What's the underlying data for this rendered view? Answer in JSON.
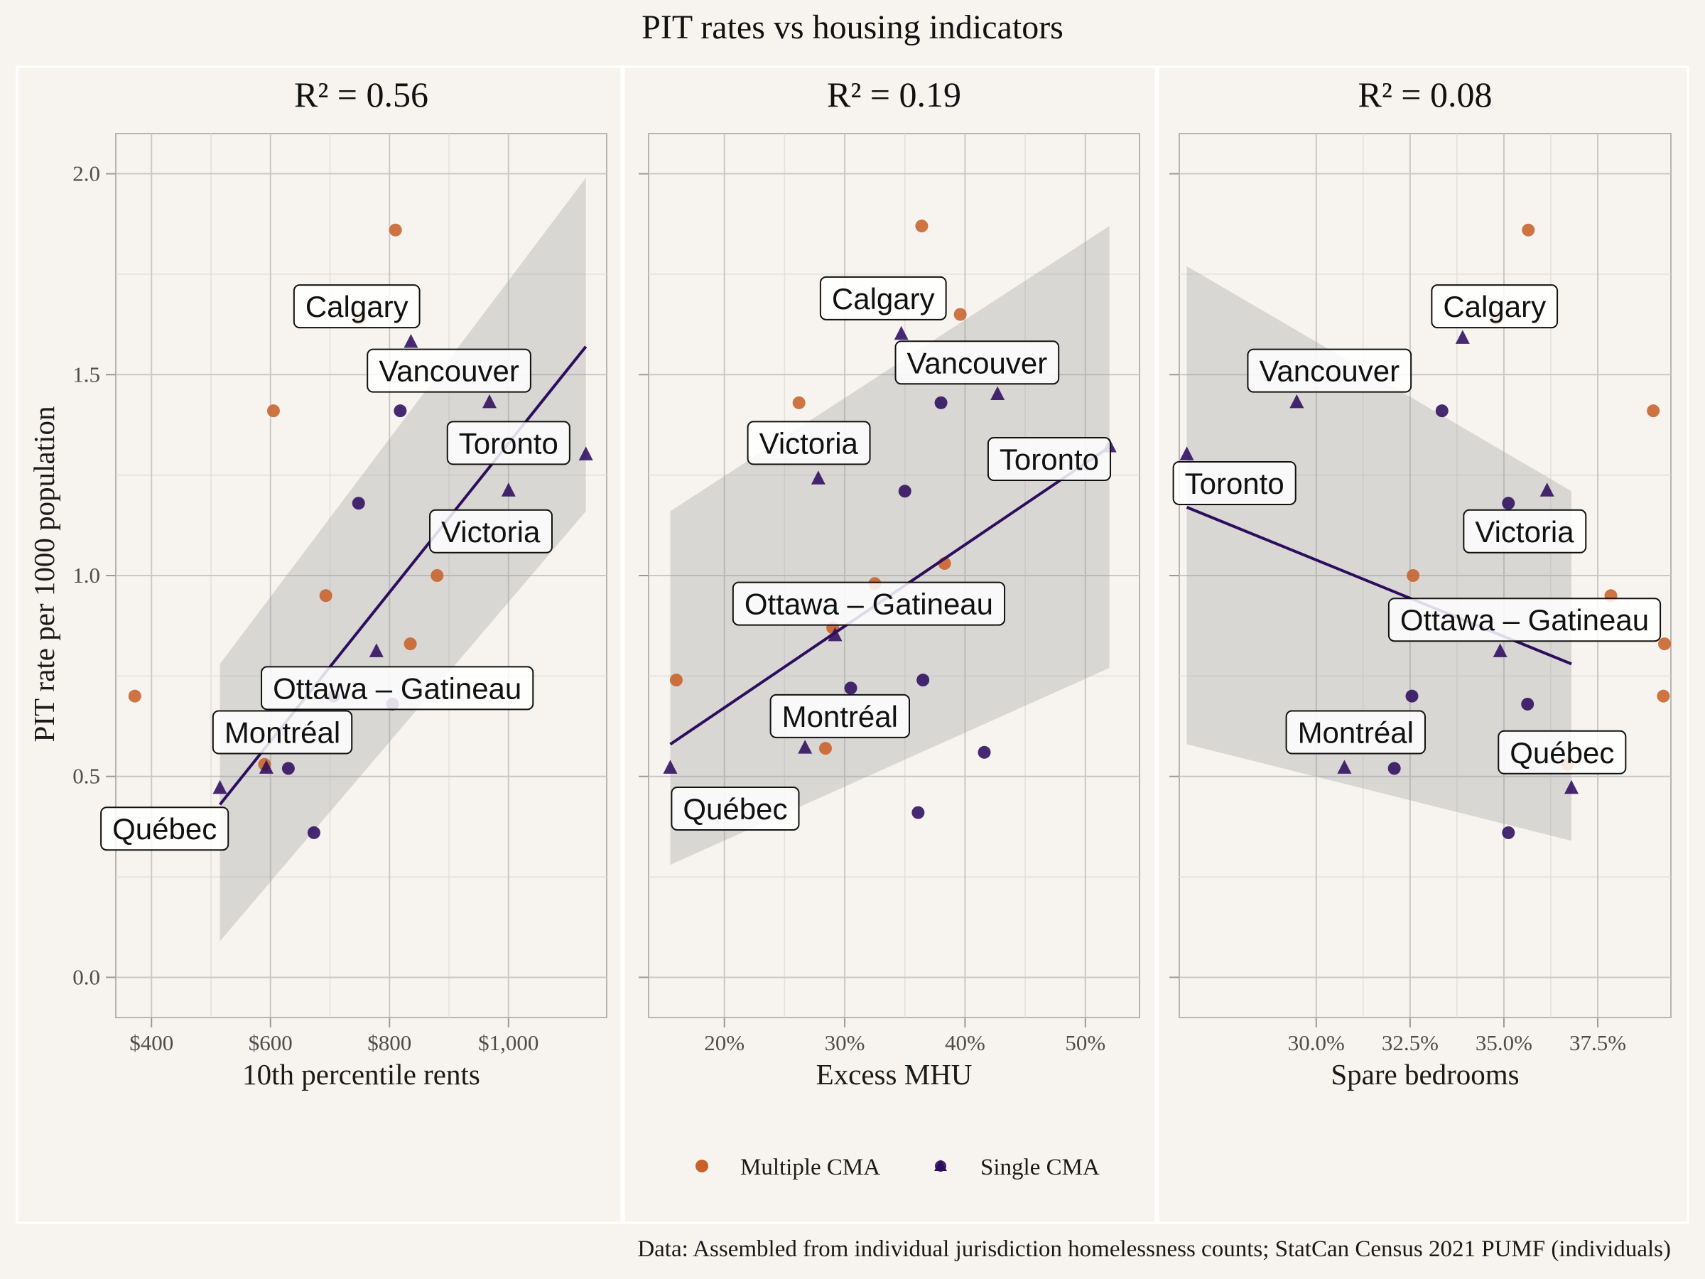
{
  "title": "PIT rates vs housing indicators",
  "ylabel": "PIT rate per 1000 population",
  "caption": "Data: Assembled from individual jurisdiction homelessness counts; StatCan Census 2021 PUMF (individuals)",
  "colors": {
    "multiple": "#c8612a",
    "single": "#2d0d5e",
    "ribbon": "#9a9a9a",
    "panel_bg": "#f7f4ef",
    "grid": "#c8c8c8",
    "fit": "#2d0d5e"
  },
  "legend": {
    "items": [
      {
        "key": "multiple",
        "label": "Multiple CMA",
        "icon": "circle-icon"
      },
      {
        "key": "single",
        "label": "Single CMA",
        "icon": "circle-triangle-icon"
      }
    ]
  },
  "chart_data": [
    {
      "type": "scatter",
      "title": "R² = 0.56",
      "xlabel": "10th percentile rents",
      "ylabel": "PIT rate per 1000 population",
      "xlim": [
        340,
        1165
      ],
      "ylim": [
        -0.1,
        2.1
      ],
      "xticks": [
        400,
        600,
        800,
        1000
      ],
      "xtick_labels": [
        "$400",
        "$600",
        "$800",
        "$1,000"
      ],
      "yticks": [
        0,
        0.5,
        1,
        1.5,
        2
      ],
      "ytick_labels": [
        "0.0",
        "0.5",
        "1.0",
        "1.5",
        "2.0"
      ],
      "grid": true,
      "fit": {
        "x": [
          515,
          1130
        ],
        "y": [
          0.43,
          1.57
        ],
        "band_lo": [
          0.09,
          1.16
        ],
        "band_hi": [
          0.78,
          1.99
        ]
      },
      "points": [
        {
          "x": 372,
          "y": 0.7,
          "group": "multiple",
          "shape": "circle"
        },
        {
          "x": 605,
          "y": 1.41,
          "group": "multiple",
          "shape": "circle"
        },
        {
          "x": 810,
          "y": 1.86,
          "group": "multiple",
          "shape": "circle"
        },
        {
          "x": 750,
          "y": 1.64,
          "group": "multiple",
          "shape": "circle"
        },
        {
          "x": 880,
          "y": 1.0,
          "group": "multiple",
          "shape": "circle"
        },
        {
          "x": 693,
          "y": 0.95,
          "group": "multiple",
          "shape": "circle"
        },
        {
          "x": 835,
          "y": 0.83,
          "group": "multiple",
          "shape": "circle"
        },
        {
          "x": 590,
          "y": 0.53,
          "group": "multiple",
          "shape": "circle"
        },
        {
          "x": 836,
          "y": 1.58,
          "group": "single",
          "shape": "triangle"
        },
        {
          "x": 968,
          "y": 1.43,
          "group": "single",
          "shape": "triangle"
        },
        {
          "x": 1130,
          "y": 1.3,
          "group": "single",
          "shape": "triangle"
        },
        {
          "x": 1000,
          "y": 1.21,
          "group": "single",
          "shape": "triangle"
        },
        {
          "x": 778,
          "y": 0.81,
          "group": "single",
          "shape": "triangle"
        },
        {
          "x": 515,
          "y": 0.47,
          "group": "single",
          "shape": "triangle"
        },
        {
          "x": 593,
          "y": 0.52,
          "group": "single",
          "shape": "triangle"
        },
        {
          "x": 818,
          "y": 1.41,
          "group": "single",
          "shape": "circle"
        },
        {
          "x": 748,
          "y": 1.18,
          "group": "single",
          "shape": "circle"
        },
        {
          "x": 706,
          "y": 0.7,
          "group": "single",
          "shape": "circle"
        },
        {
          "x": 805,
          "y": 0.68,
          "group": "single",
          "shape": "circle"
        },
        {
          "x": 630,
          "y": 0.52,
          "group": "single",
          "shape": "circle"
        },
        {
          "x": 673,
          "y": 0.36,
          "group": "single",
          "shape": "circle"
        }
      ],
      "labels": [
        {
          "text": "Calgary",
          "x": 745,
          "y": 1.67
        },
        {
          "text": "Vancouver",
          "x": 900,
          "y": 1.51
        },
        {
          "text": "Toronto",
          "x": 1000,
          "y": 1.33
        },
        {
          "text": "Victoria",
          "x": 970,
          "y": 1.11
        },
        {
          "text": "Ottawa – Gatineau",
          "x": 813,
          "y": 0.72
        },
        {
          "text": "Montréal",
          "x": 620,
          "y": 0.61
        },
        {
          "text": "Québec",
          "x": 422,
          "y": 0.37
        }
      ]
    },
    {
      "type": "scatter",
      "title": "R² = 0.19",
      "xlabel": "Excess MHU",
      "ylabel": "",
      "xlim": [
        0.137,
        0.545
      ],
      "ylim": [
        -0.1,
        2.1
      ],
      "xticks": [
        0.2,
        0.3,
        0.4,
        0.5
      ],
      "xtick_labels": [
        "20%",
        "30%",
        "40%",
        "50%"
      ],
      "yticks": [
        0,
        0.5,
        1,
        1.5,
        2
      ],
      "ytick_labels": [],
      "grid": true,
      "fit": {
        "x": [
          0.155,
          0.52
        ],
        "y": [
          0.58,
          1.32
        ],
        "band_lo": [
          0.28,
          0.77
        ],
        "band_hi": [
          1.16,
          1.87
        ]
      },
      "points": [
        {
          "x": 0.16,
          "y": 0.74,
          "group": "multiple",
          "shape": "circle"
        },
        {
          "x": 0.262,
          "y": 1.43,
          "group": "multiple",
          "shape": "circle"
        },
        {
          "x": 0.364,
          "y": 1.87,
          "group": "multiple",
          "shape": "circle"
        },
        {
          "x": 0.396,
          "y": 1.65,
          "group": "multiple",
          "shape": "circle"
        },
        {
          "x": 0.383,
          "y": 1.03,
          "group": "multiple",
          "shape": "circle"
        },
        {
          "x": 0.325,
          "y": 0.98,
          "group": "multiple",
          "shape": "circle"
        },
        {
          "x": 0.29,
          "y": 0.87,
          "group": "multiple",
          "shape": "circle"
        },
        {
          "x": 0.284,
          "y": 0.57,
          "group": "multiple",
          "shape": "circle"
        },
        {
          "x": 0.347,
          "y": 1.6,
          "group": "single",
          "shape": "triangle"
        },
        {
          "x": 0.427,
          "y": 1.45,
          "group": "single",
          "shape": "triangle"
        },
        {
          "x": 0.52,
          "y": 1.32,
          "group": "single",
          "shape": "triangle"
        },
        {
          "x": 0.278,
          "y": 1.24,
          "group": "single",
          "shape": "triangle"
        },
        {
          "x": 0.292,
          "y": 0.85,
          "group": "single",
          "shape": "triangle"
        },
        {
          "x": 0.155,
          "y": 0.52,
          "group": "single",
          "shape": "triangle"
        },
        {
          "x": 0.267,
          "y": 0.57,
          "group": "single",
          "shape": "triangle"
        },
        {
          "x": 0.38,
          "y": 1.43,
          "group": "single",
          "shape": "circle"
        },
        {
          "x": 0.35,
          "y": 1.21,
          "group": "single",
          "shape": "circle"
        },
        {
          "x": 0.305,
          "y": 0.72,
          "group": "single",
          "shape": "circle"
        },
        {
          "x": 0.365,
          "y": 0.74,
          "group": "single",
          "shape": "circle"
        },
        {
          "x": 0.416,
          "y": 0.56,
          "group": "single",
          "shape": "circle"
        },
        {
          "x": 0.361,
          "y": 0.41,
          "group": "single",
          "shape": "circle"
        }
      ],
      "labels": [
        {
          "text": "Calgary",
          "x": 0.332,
          "y": 1.69
        },
        {
          "text": "Vancouver",
          "x": 0.41,
          "y": 1.53
        },
        {
          "text": "Toronto",
          "x": 0.47,
          "y": 1.29
        },
        {
          "text": "Victoria",
          "x": 0.27,
          "y": 1.33
        },
        {
          "text": "Ottawa – Gatineau",
          "x": 0.32,
          "y": 0.93
        },
        {
          "text": "Montréal",
          "x": 0.296,
          "y": 0.65
        },
        {
          "text": "Québec",
          "x": 0.209,
          "y": 0.42
        }
      ]
    },
    {
      "type": "scatter",
      "title": "R² = 0.08",
      "xlabel": "Spare bedrooms",
      "ylabel": "",
      "xlim": [
        0.2635,
        0.3945
      ],
      "ylim": [
        -0.1,
        2.1
      ],
      "xticks": [
        0.3,
        0.325,
        0.35,
        0.375
      ],
      "xtick_labels": [
        "30.0%",
        "32.5%",
        "35.0%",
        "37.5%"
      ],
      "yticks": [
        0,
        0.5,
        1,
        1.5,
        2
      ],
      "ytick_labels": [],
      "grid": true,
      "fit": {
        "x": [
          0.2655,
          0.368
        ],
        "y": [
          1.17,
          0.78
        ],
        "band_lo": [
          0.58,
          0.34
        ],
        "band_hi": [
          1.77,
          1.21
        ]
      },
      "points": [
        {
          "x": 0.3565,
          "y": 1.86,
          "group": "multiple",
          "shape": "circle"
        },
        {
          "x": 0.348,
          "y": 1.64,
          "group": "multiple",
          "shape": "circle"
        },
        {
          "x": 0.3898,
          "y": 1.41,
          "group": "multiple",
          "shape": "circle"
        },
        {
          "x": 0.3258,
          "y": 1.0,
          "group": "multiple",
          "shape": "circle"
        },
        {
          "x": 0.3785,
          "y": 0.95,
          "group": "multiple",
          "shape": "circle"
        },
        {
          "x": 0.3928,
          "y": 0.83,
          "group": "multiple",
          "shape": "circle"
        },
        {
          "x": 0.3925,
          "y": 0.7,
          "group": "multiple",
          "shape": "circle"
        },
        {
          "x": 0.367,
          "y": 0.53,
          "group": "multiple",
          "shape": "circle"
        },
        {
          "x": 0.339,
          "y": 1.59,
          "group": "single",
          "shape": "triangle"
        },
        {
          "x": 0.2948,
          "y": 1.43,
          "group": "single",
          "shape": "triangle"
        },
        {
          "x": 0.2655,
          "y": 1.3,
          "group": "single",
          "shape": "triangle"
        },
        {
          "x": 0.3615,
          "y": 1.21,
          "group": "single",
          "shape": "triangle"
        },
        {
          "x": 0.349,
          "y": 0.81,
          "group": "single",
          "shape": "triangle"
        },
        {
          "x": 0.368,
          "y": 0.47,
          "group": "single",
          "shape": "triangle"
        },
        {
          "x": 0.3075,
          "y": 0.52,
          "group": "single",
          "shape": "triangle"
        },
        {
          "x": 0.3335,
          "y": 1.41,
          "group": "single",
          "shape": "circle"
        },
        {
          "x": 0.3512,
          "y": 1.18,
          "group": "single",
          "shape": "circle"
        },
        {
          "x": 0.3255,
          "y": 0.7,
          "group": "single",
          "shape": "circle"
        },
        {
          "x": 0.3563,
          "y": 0.68,
          "group": "single",
          "shape": "circle"
        },
        {
          "x": 0.3208,
          "y": 0.52,
          "group": "single",
          "shape": "circle"
        },
        {
          "x": 0.3512,
          "y": 0.36,
          "group": "single",
          "shape": "circle"
        }
      ],
      "labels": [
        {
          "text": "Calgary",
          "x": 0.3475,
          "y": 1.67
        },
        {
          "text": "Vancouver",
          "x": 0.3035,
          "y": 1.51
        },
        {
          "text": "Toronto",
          "x": 0.2782,
          "y": 1.23
        },
        {
          "text": "Victoria",
          "x": 0.3555,
          "y": 1.11
        },
        {
          "text": "Ottawa – Gatineau",
          "x": 0.3555,
          "y": 0.89
        },
        {
          "text": "Montréal",
          "x": 0.3105,
          "y": 0.61
        },
        {
          "text": "Québec",
          "x": 0.3655,
          "y": 0.56
        }
      ]
    }
  ]
}
